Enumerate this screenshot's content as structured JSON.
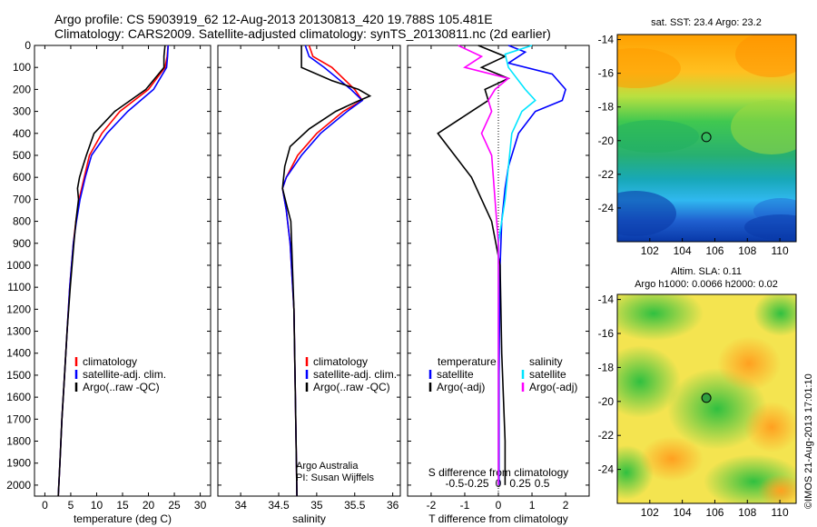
{
  "header": {
    "line1": "Argo profile: CS 5903919_62 12-Aug-2013 20130813_420 19.788S 105.481E",
    "line2": "Climatology: CARS2009. Satellite-adjusted climatology: synTS_20130811.nc (2d earlier)"
  },
  "colors": {
    "red": "#ff0000",
    "blue": "#0000ff",
    "black": "#000000",
    "cyan": "#00e5ff",
    "magenta": "#ff00ff"
  },
  "chart_data": [
    {
      "id": "temperature",
      "type": "line",
      "xlabel": "temperature (deg C)",
      "ylabel": "",
      "xlim": [
        -2,
        32
      ],
      "ylim": [
        0,
        2050
      ],
      "y_reversed": true,
      "xticks": [
        0,
        5,
        10,
        15,
        20,
        25,
        30
      ],
      "yticks": [
        0,
        100,
        200,
        300,
        400,
        500,
        600,
        700,
        800,
        900,
        1000,
        1100,
        1200,
        1300,
        1400,
        1500,
        1600,
        1700,
        1800,
        1900,
        2000
      ],
      "legend": [
        "climatology",
        "satellite-adj. clim.",
        "Argo(..raw -QC)"
      ],
      "series": [
        {
          "name": "climatology",
          "color": "#ff0000",
          "points": [
            [
              23.8,
              0
            ],
            [
              23.6,
              50
            ],
            [
              23.2,
              100
            ],
            [
              20,
              200
            ],
            [
              14.5,
              300
            ],
            [
              11,
              400
            ],
            [
              8.6,
              500
            ],
            [
              7.6,
              600
            ],
            [
              6.6,
              700
            ],
            [
              6,
              800
            ],
            [
              5.5,
              900
            ],
            [
              4.8,
              1100
            ],
            [
              4.3,
              1300
            ],
            [
              3.8,
              1500
            ],
            [
              3.3,
              1700
            ],
            [
              2.9,
              1900
            ],
            [
              2.6,
              2050
            ]
          ]
        },
        {
          "name": "satellite-adj. clim.",
          "color": "#0000ff",
          "points": [
            [
              23.8,
              0
            ],
            [
              23.7,
              50
            ],
            [
              23.5,
              100
            ],
            [
              21,
              200
            ],
            [
              16,
              300
            ],
            [
              12,
              400
            ],
            [
              9,
              500
            ],
            [
              7.8,
              600
            ],
            [
              6.8,
              700
            ],
            [
              6.1,
              800
            ],
            [
              5.5,
              900
            ],
            [
              4.8,
              1100
            ],
            [
              4.3,
              1300
            ],
            [
              3.8,
              1500
            ],
            [
              3.3,
              1700
            ],
            [
              2.9,
              1900
            ],
            [
              2.6,
              2050
            ]
          ]
        },
        {
          "name": "Argo(..raw -QC)",
          "color": "#000000",
          "points": [
            [
              23.2,
              0
            ],
            [
              23.0,
              50
            ],
            [
              23.0,
              100
            ],
            [
              19.5,
              200
            ],
            [
              13.5,
              300
            ],
            [
              9.5,
              400
            ],
            [
              8,
              500
            ],
            [
              7.2,
              560
            ],
            [
              6.7,
              600
            ],
            [
              6.3,
              650
            ],
            [
              6.5,
              700
            ],
            [
              6.0,
              800
            ],
            [
              5.6,
              900
            ],
            [
              4.9,
              1100
            ],
            [
              4.3,
              1300
            ],
            [
              3.8,
              1500
            ],
            [
              3.3,
              1700
            ],
            [
              2.9,
              1900
            ],
            [
              2.6,
              2050
            ]
          ]
        }
      ]
    },
    {
      "id": "salinity",
      "type": "line",
      "xlabel": "salinity",
      "ylabel": "",
      "xlim": [
        33.7,
        36.1
      ],
      "ylim": [
        0,
        2050
      ],
      "y_reversed": true,
      "xticks": [
        34,
        34.5,
        35,
        35.5,
        36
      ],
      "legend": [
        "climatology",
        "satellite-adj. clim.",
        "Argo(..raw -QC)"
      ],
      "note_lines": [
        "Argo Australia",
        "PI: Susan Wijffels"
      ],
      "series": [
        {
          "name": "climatology",
          "color": "#ff0000",
          "points": [
            [
              34.9,
              0
            ],
            [
              34.95,
              50
            ],
            [
              35.2,
              100
            ],
            [
              35.5,
              200
            ],
            [
              35.6,
              250
            ],
            [
              35.35,
              300
            ],
            [
              35.0,
              400
            ],
            [
              34.75,
              500
            ],
            [
              34.6,
              600
            ],
            [
              34.55,
              650
            ],
            [
              34.6,
              750
            ],
            [
              34.65,
              900
            ],
            [
              34.7,
              1200
            ],
            [
              34.72,
              1600
            ],
            [
              34.74,
              2050
            ]
          ]
        },
        {
          "name": "satellite-adj. clim.",
          "color": "#0000ff",
          "points": [
            [
              34.85,
              0
            ],
            [
              34.9,
              50
            ],
            [
              35.1,
              100
            ],
            [
              35.45,
              200
            ],
            [
              35.6,
              250
            ],
            [
              35.4,
              300
            ],
            [
              35.05,
              400
            ],
            [
              34.8,
              500
            ],
            [
              34.6,
              600
            ],
            [
              34.55,
              650
            ],
            [
              34.6,
              750
            ],
            [
              34.65,
              900
            ],
            [
              34.7,
              1200
            ],
            [
              34.72,
              1600
            ],
            [
              34.74,
              2050
            ]
          ]
        },
        {
          "name": "Argo(..raw -QC)",
          "color": "#000000",
          "points": [
            [
              34.8,
              0
            ],
            [
              34.8,
              100
            ],
            [
              35.2,
              160
            ],
            [
              35.55,
              200
            ],
            [
              35.7,
              230
            ],
            [
              35.5,
              260
            ],
            [
              35.25,
              300
            ],
            [
              34.9,
              380
            ],
            [
              34.65,
              460
            ],
            [
              34.58,
              550
            ],
            [
              34.55,
              650
            ],
            [
              34.6,
              720
            ],
            [
              34.66,
              800
            ],
            [
              34.68,
              1000
            ],
            [
              34.7,
              1200
            ],
            [
              34.72,
              1600
            ],
            [
              34.74,
              2050
            ]
          ]
        }
      ]
    },
    {
      "id": "difference",
      "type": "line",
      "xlabel": "T difference from climatology",
      "xlabel2": "S difference from climatology",
      "xlim": [
        -2.7,
        2.7
      ],
      "ylim": [
        0,
        2050
      ],
      "y_reversed": true,
      "xticks": [
        -2,
        -1,
        0,
        1,
        2
      ],
      "xticks2": [
        "-0.5",
        "-0.25",
        "0",
        "0.25",
        "0.5"
      ],
      "legend_temperature_title": "temperature",
      "legend_salinity_title": "salinity",
      "legend_temperature": [
        "satellite",
        "Argo(-adj)"
      ],
      "legend_salinity": [
        "satellite",
        "Argo(-adj)"
      ],
      "series": [
        {
          "name": "satellite",
          "color": "#0000ff",
          "points": [
            [
              0.3,
              0
            ],
            [
              0.8,
              30
            ],
            [
              0.3,
              80
            ],
            [
              1.6,
              130
            ],
            [
              2.0,
              200
            ],
            [
              1.9,
              250
            ],
            [
              1.1,
              300
            ],
            [
              0.6,
              400
            ],
            [
              0.3,
              550
            ],
            [
              0.2,
              650
            ],
            [
              0.1,
              800
            ],
            [
              0.05,
              1000
            ],
            [
              0.02,
              1500
            ],
            [
              0.02,
              2000
            ]
          ]
        },
        {
          "name": "Argo(-adj)",
          "color": "#000000",
          "points": [
            [
              -0.6,
              0
            ],
            [
              0.2,
              50
            ],
            [
              -0.5,
              100
            ],
            [
              0.3,
              150
            ],
            [
              -0.4,
              200
            ],
            [
              -0.3,
              250
            ],
            [
              -0.8,
              300
            ],
            [
              -1.8,
              400
            ],
            [
              -1.3,
              500
            ],
            [
              -0.8,
              600
            ],
            [
              -0.5,
              700
            ],
            [
              -0.2,
              800
            ],
            [
              0.05,
              1000
            ],
            [
              0.1,
              1400
            ],
            [
              0.2,
              1800
            ],
            [
              0.2,
              2000
            ]
          ]
        },
        {
          "name": "satellite (salinity)",
          "color": "#00e5ff",
          "points": [
            [
              1.0,
              0
            ],
            [
              0.2,
              40
            ],
            [
              0.3,
              100
            ],
            [
              0.8,
              200
            ],
            [
              1.1,
              250
            ],
            [
              0.7,
              300
            ],
            [
              0.4,
              400
            ],
            [
              0.3,
              550
            ],
            [
              0.2,
              700
            ],
            [
              0,
              900
            ],
            [
              0,
              1200
            ],
            [
              0,
              1600
            ],
            [
              0,
              2000
            ]
          ]
        },
        {
          "name": "Argo(-adj) (salinity)",
          "color": "#ff00ff",
          "points": [
            [
              -1.2,
              0
            ],
            [
              -0.5,
              50
            ],
            [
              -1.0,
              100
            ],
            [
              0.3,
              150
            ],
            [
              -0.1,
              200
            ],
            [
              -0.3,
              250
            ],
            [
              -0.2,
              300
            ],
            [
              -0.5,
              400
            ],
            [
              -0.2,
              500
            ],
            [
              -0.1,
              700
            ],
            [
              0,
              900
            ],
            [
              0,
              1200
            ],
            [
              0,
              1600
            ],
            [
              0,
              2000
            ]
          ]
        }
      ]
    },
    {
      "id": "sst-map",
      "type": "heatmap",
      "title": "sat. SST: 23.4  Argo: 23.2",
      "xlim": [
        100,
        111
      ],
      "ylim": [
        -26,
        -13.7
      ],
      "xticks": [
        102,
        104,
        106,
        108,
        110
      ],
      "yticks": [
        -14,
        -16,
        -18,
        -20,
        -22,
        -24
      ],
      "marker": {
        "x": 105.48,
        "y": -19.79
      }
    },
    {
      "id": "sla-map",
      "type": "heatmap",
      "title_line1": "Altim. SLA: 0.11",
      "title_line2": "Argo h1000: 0.0066 h2000: 0.02",
      "xlim": [
        100,
        111
      ],
      "ylim": [
        -26,
        -13.7
      ],
      "xticks": [
        102,
        104,
        106,
        108,
        110
      ],
      "yticks": [
        -14,
        -16,
        -18,
        -20,
        -22,
        -24
      ],
      "marker": {
        "x": 105.48,
        "y": -19.79
      }
    }
  ],
  "side_label": "©IMOS 21-Aug-2013 17:01:10"
}
